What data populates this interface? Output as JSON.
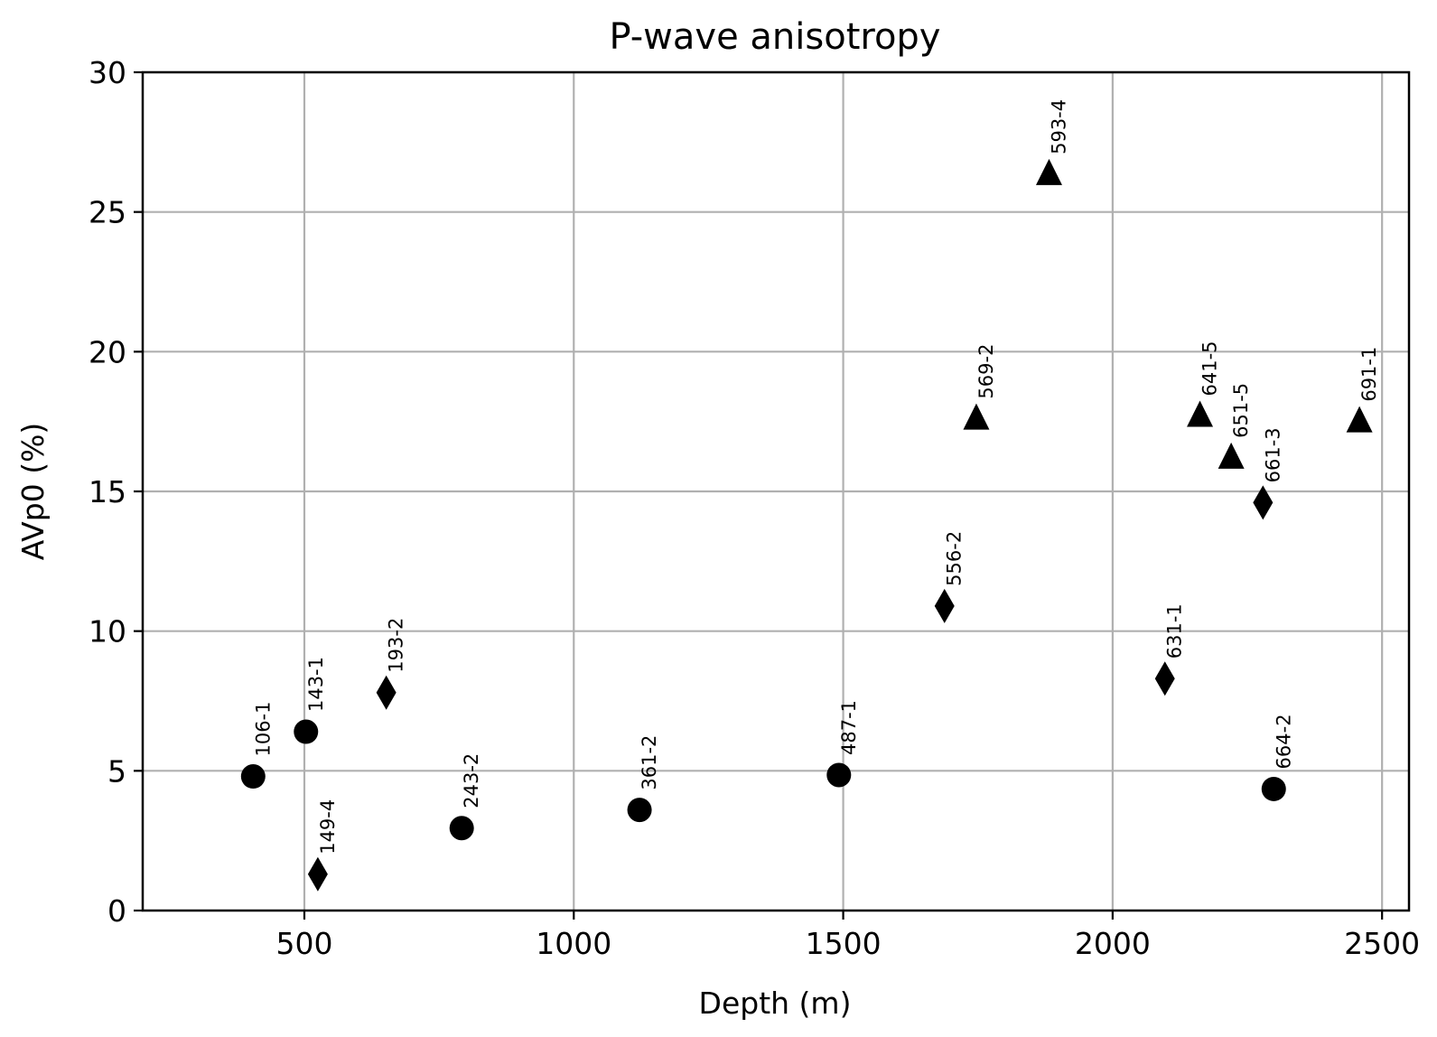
{
  "chart_data": {
    "type": "scatter",
    "title": "P-wave anisotropy",
    "xlabel": "Depth (m)",
    "ylabel": "AVp0 (%)",
    "xlim": [
      200,
      2550
    ],
    "ylim": [
      0,
      30
    ],
    "xticks": [
      500,
      1000,
      1500,
      2000,
      2500
    ],
    "yticks": [
      0,
      5,
      10,
      15,
      20,
      25,
      30
    ],
    "grid": true,
    "marker_color": "#000000",
    "grid_color": "#b0b0b0",
    "points": [
      {
        "label": "106-1",
        "x": 405,
        "y": 4.8,
        "marker": "circle"
      },
      {
        "label": "143-1",
        "x": 503,
        "y": 6.4,
        "marker": "circle"
      },
      {
        "label": "149-4",
        "x": 525,
        "y": 1.3,
        "marker": "diamond"
      },
      {
        "label": "193-2",
        "x": 652,
        "y": 7.8,
        "marker": "diamond"
      },
      {
        "label": "243-2",
        "x": 792,
        "y": 2.95,
        "marker": "circle"
      },
      {
        "label": "361-2",
        "x": 1122,
        "y": 3.6,
        "marker": "circle"
      },
      {
        "label": "487-1",
        "x": 1492,
        "y": 4.85,
        "marker": "circle"
      },
      {
        "label": "556-2",
        "x": 1688,
        "y": 10.9,
        "marker": "diamond"
      },
      {
        "label": "569-2",
        "x": 1747,
        "y": 17.6,
        "marker": "triangle"
      },
      {
        "label": "593-4",
        "x": 1882,
        "y": 26.35,
        "marker": "triangle"
      },
      {
        "label": "631-1",
        "x": 2097,
        "y": 8.3,
        "marker": "diamond"
      },
      {
        "label": "641-5",
        "x": 2162,
        "y": 17.7,
        "marker": "triangle"
      },
      {
        "label": "651-5",
        "x": 2220,
        "y": 16.2,
        "marker": "triangle"
      },
      {
        "label": "661-3",
        "x": 2279,
        "y": 14.6,
        "marker": "diamond"
      },
      {
        "label": "664-2",
        "x": 2299,
        "y": 4.35,
        "marker": "circle"
      },
      {
        "label": "691-1",
        "x": 2458,
        "y": 17.5,
        "marker": "triangle"
      }
    ]
  }
}
